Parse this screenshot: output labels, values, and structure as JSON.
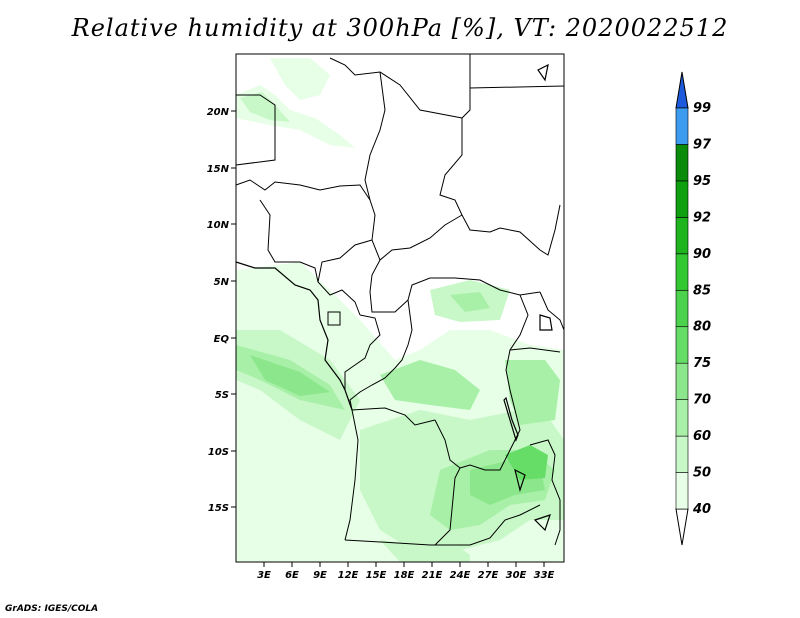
{
  "title": "Relative humidity at 300hPa [%], VT: 2020022512",
  "credit": "GrADS: IGES/COLA",
  "map": {
    "lat_ticks": [
      "20N",
      "15N",
      "10N",
      "5N",
      "EQ",
      "5S",
      "10S",
      "15S"
    ],
    "lon_ticks": [
      "3E",
      "6E",
      "9E",
      "12E",
      "15E",
      "18E",
      "21E",
      "24E",
      "27E",
      "30E",
      "33E"
    ]
  },
  "colorbar": {
    "levels": [
      "40",
      "50",
      "60",
      "70",
      "75",
      "80",
      "85",
      "90",
      "92",
      "95",
      "97",
      "99"
    ],
    "colors": [
      "#ffffff",
      "#e6ffe6",
      "#c8f7c8",
      "#a8f0a8",
      "#8ce68c",
      "#66dd66",
      "#4cd24c",
      "#32c832",
      "#1eb41e",
      "#0fa00f",
      "#0a8c0a",
      "#3c9cf0",
      "#2878e6",
      "#1e5adc"
    ]
  }
}
